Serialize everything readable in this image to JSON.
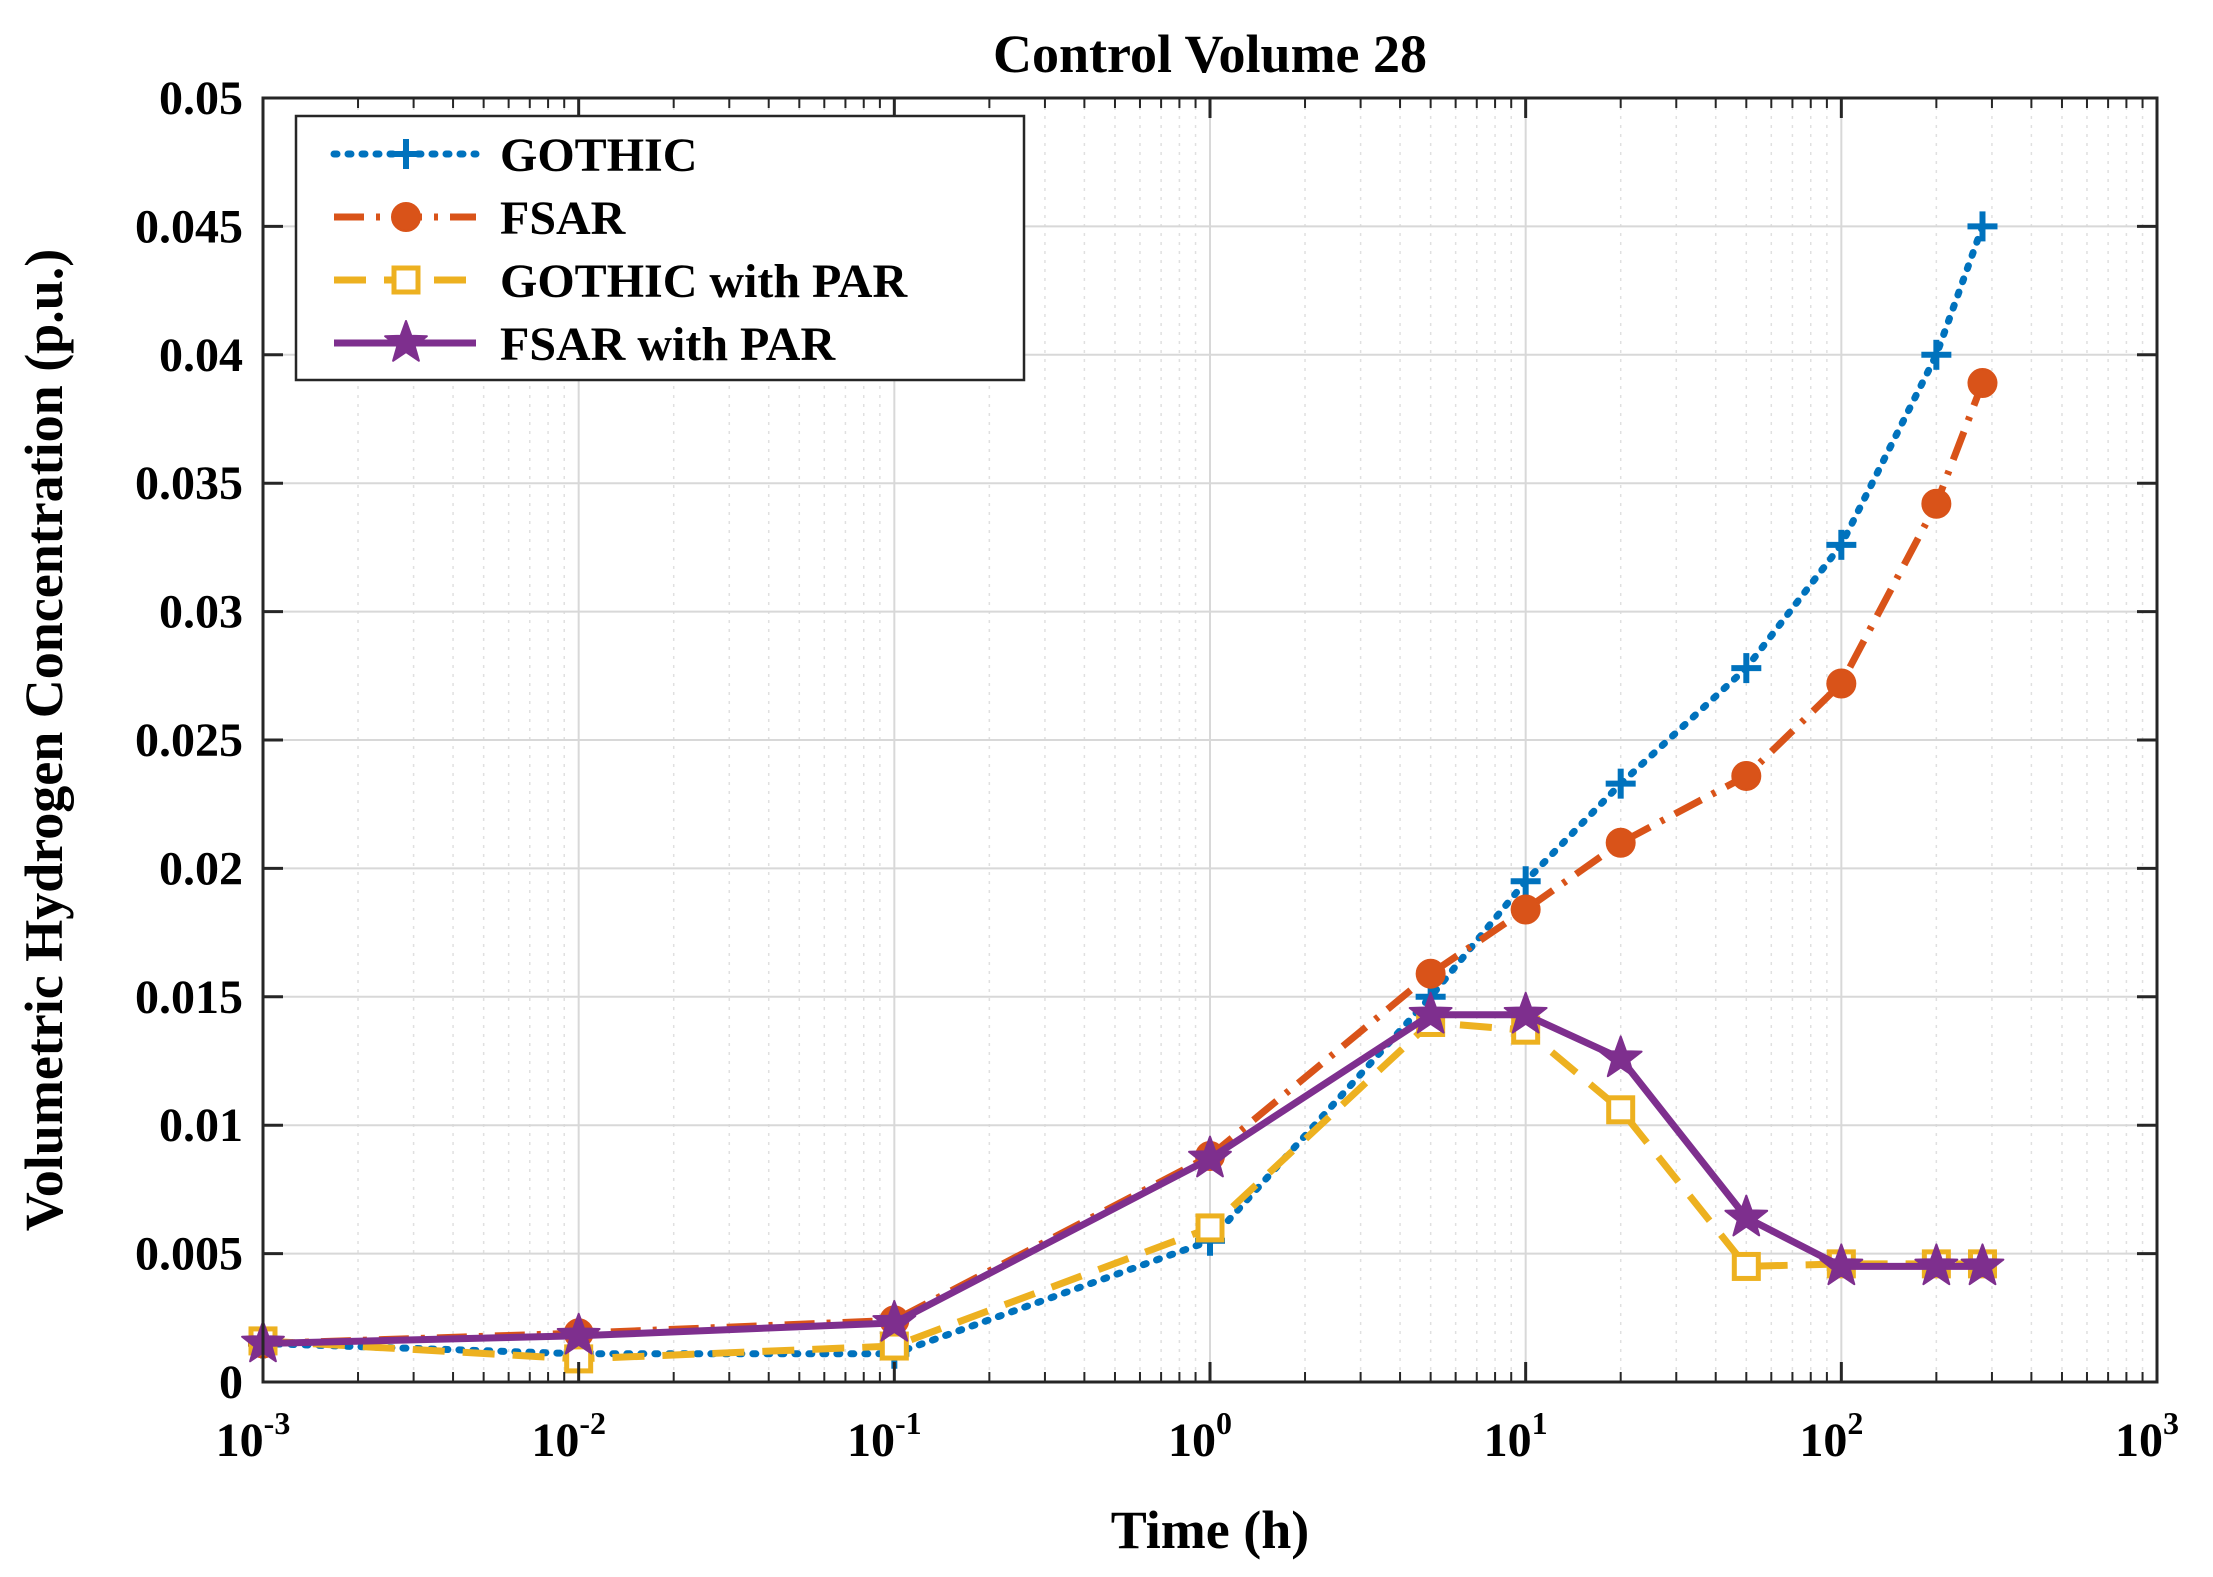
{
  "chart_data": {
    "type": "line",
    "title": "Control Volume 28",
    "xlabel": "Time (h)",
    "ylabel": "Volumetric Hydrogen Concentration (p.u.)",
    "xscale": "log",
    "xlim": [
      0.001,
      1000
    ],
    "ylim": [
      0,
      0.05
    ],
    "grid": true,
    "legend_position": "top-left",
    "x_ticks": [
      {
        "base": "10",
        "exp": "-3",
        "value": 0.001
      },
      {
        "base": "10",
        "exp": "-2",
        "value": 0.01
      },
      {
        "base": "10",
        "exp": "-1",
        "value": 0.1
      },
      {
        "base": "10",
        "exp": "0",
        "value": 1
      },
      {
        "base": "10",
        "exp": "1",
        "value": 10
      },
      {
        "base": "10",
        "exp": "2",
        "value": 100
      },
      {
        "base": "10",
        "exp": "3",
        "value": 1000
      }
    ],
    "y_ticks": [
      {
        "label": "0",
        "value": 0
      },
      {
        "label": "0.005",
        "value": 0.005
      },
      {
        "label": "0.01",
        "value": 0.01
      },
      {
        "label": "0.015",
        "value": 0.015
      },
      {
        "label": "0.02",
        "value": 0.02
      },
      {
        "label": "0.025",
        "value": 0.025
      },
      {
        "label": "0.03",
        "value": 0.03
      },
      {
        "label": "0.035",
        "value": 0.035
      },
      {
        "label": "0.04",
        "value": 0.04
      },
      {
        "label": "0.045",
        "value": 0.045
      },
      {
        "label": "0.05",
        "value": 0.05
      }
    ],
    "series": [
      {
        "name": "GOTHIC",
        "color": "#0072BD",
        "line_style": "dotted",
        "marker": "plus",
        "x": [
          0.001,
          0.01,
          0.1,
          1,
          5,
          10,
          20,
          50,
          100,
          200,
          280
        ],
        "y": [
          0.0015,
          0.0011,
          0.0011,
          0.0055,
          0.015,
          0.0195,
          0.0233,
          0.0278,
          0.0326,
          0.04,
          0.045
        ]
      },
      {
        "name": "FSAR",
        "color": "#D95319",
        "line_style": "dashdot",
        "marker": "circle",
        "x": [
          0.001,
          0.01,
          0.1,
          1,
          5,
          10,
          20,
          50,
          100,
          200,
          280
        ],
        "y": [
          0.0015,
          0.0019,
          0.0024,
          0.0088,
          0.0159,
          0.0184,
          0.021,
          0.0236,
          0.0272,
          0.0342,
          0.0389
        ]
      },
      {
        "name": "GOTHIC with PAR",
        "color": "#EDB120",
        "line_style": "dashed",
        "marker": "square",
        "x": [
          0.001,
          0.01,
          0.1,
          1,
          5,
          10,
          20,
          50,
          100,
          200,
          280
        ],
        "y": [
          0.0016,
          0.0009,
          0.0014,
          0.006,
          0.014,
          0.0137,
          0.0106,
          0.0045,
          0.0046,
          0.0046,
          0.0046
        ]
      },
      {
        "name": "FSAR with PAR",
        "color": "#7E2F8E",
        "line_style": "solid",
        "marker": "star",
        "x": [
          0.001,
          0.01,
          0.1,
          1,
          5,
          10,
          20,
          50,
          100,
          200,
          280
        ],
        "y": [
          0.0015,
          0.0018,
          0.0023,
          0.0087,
          0.0143,
          0.0143,
          0.0126,
          0.0064,
          0.0045,
          0.0045,
          0.0045
        ]
      }
    ]
  }
}
